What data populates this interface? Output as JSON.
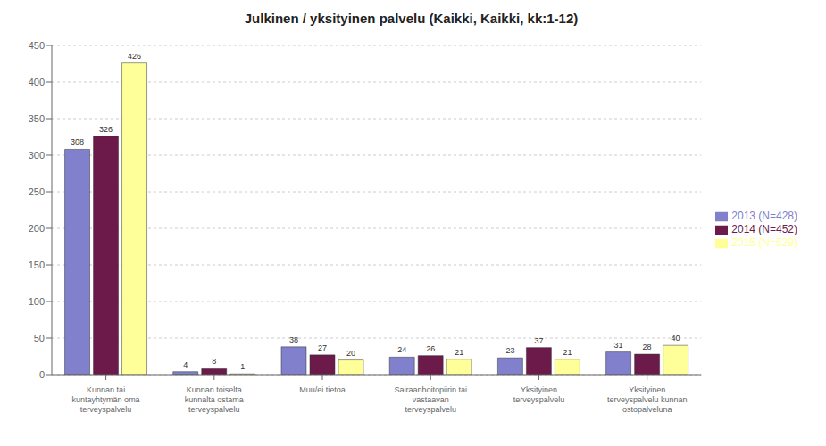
{
  "chart_data": {
    "type": "bar",
    "title": "Julkinen / yksityinen palvelu (Kaikki, Kaikki, kk:1-12)",
    "categories": [
      "Kunnan tai\nkuntayhtymän oma\nterveyspalvelu",
      "Kunnan toiselta\nkunnalta ostama\nterveyspalvelu",
      "Muu/ei tietoa",
      "Sairaanhoitopiirin tai\nvastaavan\nterveyspalvelu",
      "Yksityinen\nterveyspalvelu",
      "Yksityinen\nterveyspalvelu kunnan\nostopalveluna"
    ],
    "series": [
      {
        "name": "2013 (N=428)",
        "color": "#8080cc",
        "values": [
          308,
          4,
          38,
          24,
          23,
          31
        ]
      },
      {
        "name": "2014 (N=452)",
        "color": "#6b1a4a",
        "values": [
          326,
          8,
          27,
          26,
          37,
          28
        ]
      },
      {
        "name": "2015 (N=529)",
        "color": "#ffff99",
        "values": [
          426,
          1,
          20,
          21,
          21,
          40
        ]
      }
    ],
    "ylim": [
      0,
      450
    ],
    "yticks": [
      0,
      50,
      100,
      150,
      200,
      250,
      300,
      350,
      400,
      450
    ],
    "grid": true,
    "legend": "right",
    "data_labels": true
  }
}
